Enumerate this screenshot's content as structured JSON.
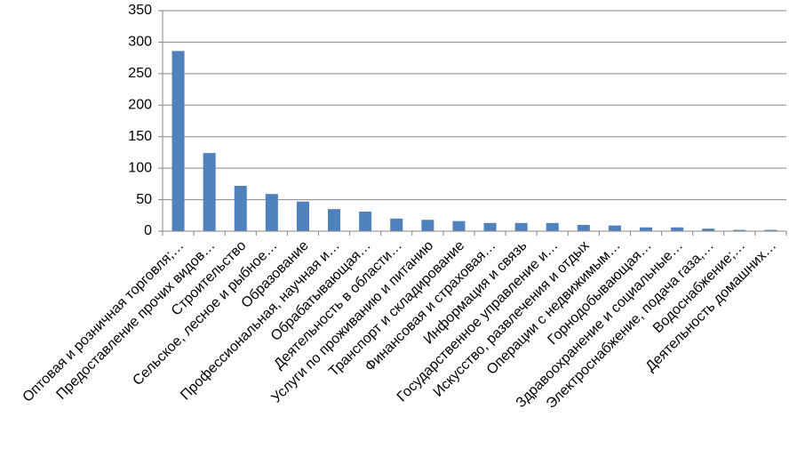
{
  "chart_data": {
    "type": "bar",
    "categories": [
      "Оптовая и розничная торговля;…",
      "Предоставление прочих видов…",
      "Строительство",
      "Сельское, лесное и рыбное…",
      "Образование",
      "Профессиональная, научная и…",
      "Обрабатывающая…",
      "Деятельность в области…",
      "Услуги по проживанию и питанию",
      "Транспорт и складирование",
      "Финансовая и страховая…",
      "Информация и связь",
      "Государственное управление и…",
      "Искусство, развлечения и отдых",
      "Операции с недвижимым…",
      "Горнодобывающая…",
      "Здравоохранение и социальные…",
      "Электроснабжение, подача газа,…",
      "Водоснабжение;…",
      "Деятельность домашних…"
    ],
    "values": [
      286,
      124,
      72,
      59,
      47,
      35,
      31,
      20,
      18,
      16,
      13,
      13,
      13,
      10,
      9,
      6,
      6,
      4,
      2,
      2
    ],
    "color": "#4f81bd",
    "ylim": [
      0,
      350
    ],
    "yticks": [
      0,
      50,
      100,
      150,
      200,
      250,
      300,
      350
    ],
    "grid": true
  }
}
